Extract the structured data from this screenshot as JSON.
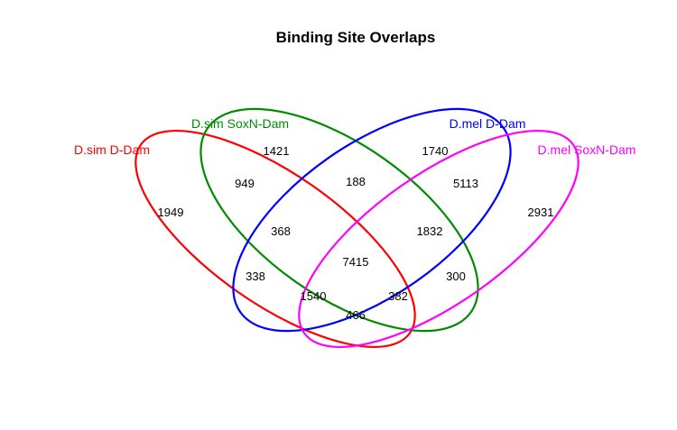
{
  "title": "Binding Site Overlaps",
  "sets": [
    {
      "name": "D.sim D-Dam",
      "color": "#ff0000"
    },
    {
      "name": "D.sim SoxN-Dam",
      "color": "#008b00"
    },
    {
      "name": "D.mel D-Dam",
      "color": "#0000ff"
    },
    {
      "name": "D.mel SoxN-Dam",
      "color": "#ff00ff"
    }
  ],
  "regions": [
    {
      "sets": [
        "D.sim D-Dam"
      ],
      "count": "1949"
    },
    {
      "sets": [
        "D.sim SoxN-Dam"
      ],
      "count": "1421"
    },
    {
      "sets": [
        "D.mel D-Dam"
      ],
      "count": "1740"
    },
    {
      "sets": [
        "D.mel SoxN-Dam"
      ],
      "count": "2931"
    },
    {
      "sets": [
        "D.sim D-Dam",
        "D.sim SoxN-Dam"
      ],
      "count": "949"
    },
    {
      "sets": [
        "D.sim SoxN-Dam",
        "D.mel D-Dam"
      ],
      "count": "188"
    },
    {
      "sets": [
        "D.mel D-Dam",
        "D.mel SoxN-Dam"
      ],
      "count": "5113"
    },
    {
      "sets": [
        "D.sim D-Dam",
        "D.sim SoxN-Dam",
        "D.mel D-Dam"
      ],
      "count": "368"
    },
    {
      "sets": [
        "D.sim SoxN-Dam",
        "D.mel D-Dam",
        "D.mel SoxN-Dam"
      ],
      "count": "1832"
    },
    {
      "sets": [
        "D.sim D-Dam",
        "D.sim SoxN-Dam",
        "D.mel D-Dam",
        "D.mel SoxN-Dam"
      ],
      "count": "7415"
    },
    {
      "sets": [
        "D.sim D-Dam",
        "D.mel D-Dam"
      ],
      "count": "338"
    },
    {
      "sets": [
        "D.sim SoxN-Dam",
        "D.mel SoxN-Dam"
      ],
      "count": "300"
    },
    {
      "sets": [
        "D.sim D-Dam",
        "D.mel D-Dam",
        "D.mel SoxN-Dam"
      ],
      "count": "1540"
    },
    {
      "sets": [
        "D.sim D-Dam",
        "D.sim SoxN-Dam",
        "D.mel SoxN-Dam"
      ],
      "count": "382"
    },
    {
      "sets": [
        "D.sim D-Dam",
        "D.mel SoxN-Dam"
      ],
      "count": "466"
    }
  ]
}
